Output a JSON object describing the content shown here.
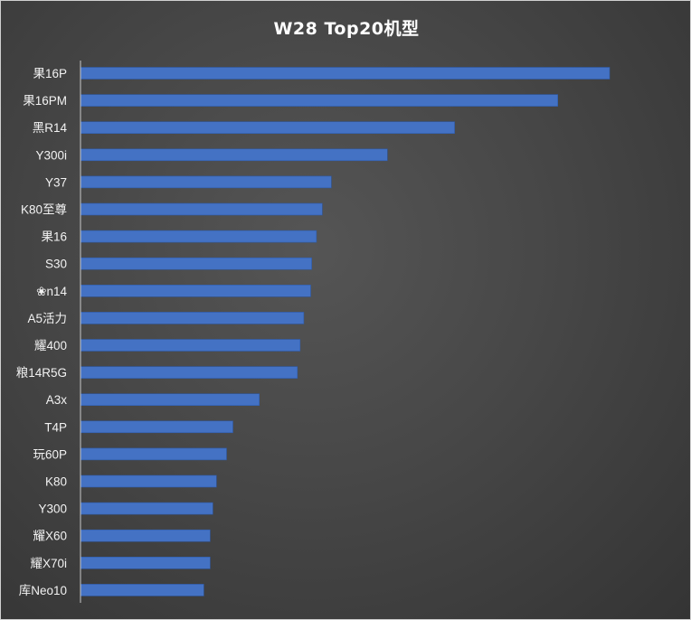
{
  "chart_data": {
    "type": "bar",
    "orientation": "horizontal",
    "title": "W28 Top20机型",
    "xlabel": "",
    "ylabel": "",
    "categories": [
      "果16P",
      "果16PM",
      "黑R14",
      "Y300i",
      "Y37",
      "K80至尊",
      "果16",
      "S30",
      "❀n14",
      "A5活力",
      "耀400",
      "粮14R5G",
      "A3x",
      "T4P",
      "玩60P",
      "K80",
      "Y300",
      "耀X60",
      "耀X70i",
      "库Neo10"
    ],
    "values": [
      100,
      90.2,
      70.7,
      58.0,
      47.4,
      45.7,
      44.6,
      43.7,
      43.5,
      42.2,
      41.5,
      41.0,
      33.8,
      28.8,
      27.6,
      25.7,
      25.0,
      24.5,
      24.5,
      23.3
    ],
    "xlim": [
      0,
      100
    ],
    "grid": false,
    "legend": "none",
    "colors": {
      "bar": "#4472c4",
      "bar_edge": "#2e5aa8",
      "axis": "#c8c8c8",
      "text": "#f2f2f2"
    }
  }
}
